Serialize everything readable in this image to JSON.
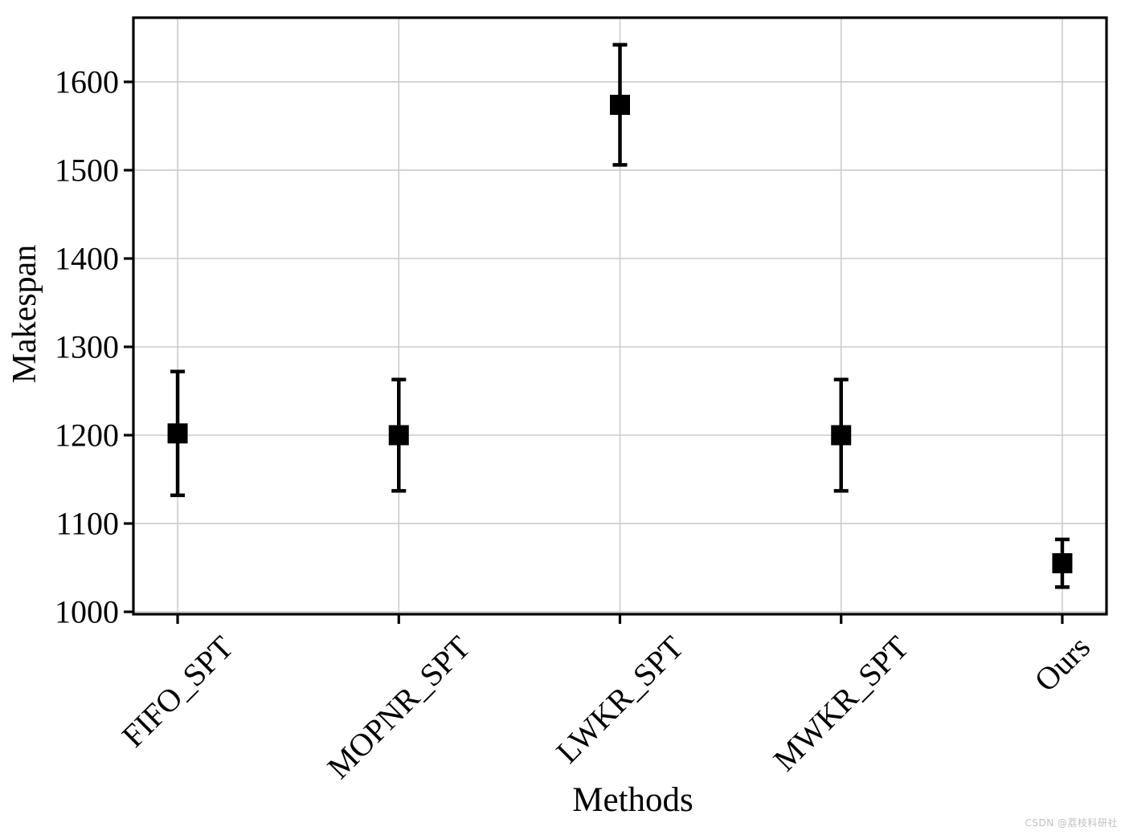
{
  "watermark": {
    "text": "CSDN @荔枝科研社",
    "color": "#bfbfbf"
  },
  "chart_data": {
    "type": "scatter",
    "subtype": "errorbar",
    "title": "",
    "xlabel": "Methods",
    "ylabel": "Makespan",
    "categories": [
      "FIFO_SPT",
      "MOPNR_SPT",
      "LWKR_SPT",
      "MWKR_SPT",
      "Ours"
    ],
    "series": [
      {
        "name": "Makespan",
        "marker": "square",
        "marker_size_px": 25,
        "color": "#000000",
        "means": [
          1202,
          1200,
          1574,
          1200,
          1055
        ],
        "error_low": [
          1132,
          1137,
          1506,
          1137,
          1028
        ],
        "error_high": [
          1272,
          1263,
          1642,
          1263,
          1082
        ]
      }
    ],
    "ylim": [
      997.3,
      1672.7
    ],
    "yticks": [
      1000,
      1100,
      1200,
      1300,
      1400,
      1500,
      1600
    ],
    "x_margin_units": 0.2,
    "xtick_rotation_deg": 45,
    "grid": true,
    "grid_color": "#cccccc",
    "spine_color": "#000000",
    "background": "#ffffff",
    "legend_position": "none"
  }
}
